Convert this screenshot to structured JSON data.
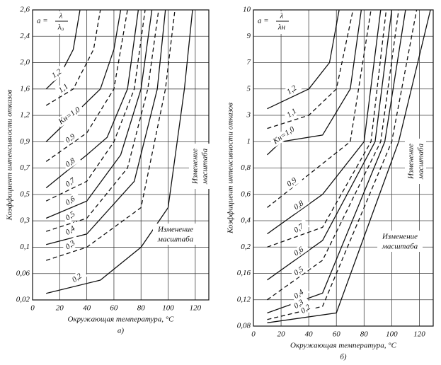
{
  "chart_data": [
    {
      "type": "line",
      "caption": "а)",
      "x_label": "Окружающая температура, °С",
      "y_label": "Коэффициент интенсивности отказов",
      "formula": {
        "lhs": "a =",
        "num": "λ",
        "den": "λ₀"
      },
      "annotations": [
        {
          "lines": [
            "Изменение",
            "масштаба"
          ]
        },
        {
          "lines": [
            "Изменение",
            "масштаба"
          ]
        }
      ],
      "xlim": [
        0,
        130
      ],
      "xticks": [
        0,
        20,
        40,
        60,
        80,
        100,
        120
      ],
      "ylim": [
        0.02,
        2.6
      ],
      "yticks": [
        {
          "value": 0.02,
          "label": "0,02"
        },
        {
          "value": 0.06,
          "label": "0,06"
        },
        {
          "value": 0.1,
          "label": "0,1"
        },
        {
          "value": 0.3,
          "label": "0,3"
        },
        {
          "value": 0.5,
          "label": "0,5"
        },
        {
          "value": 0.7,
          "label": "0,7"
        },
        {
          "value": 0.9,
          "label": "0,9"
        },
        {
          "value": 1.2,
          "label": "1,2"
        },
        {
          "value": 1.6,
          "label": "1,6"
        },
        {
          "value": 2.0,
          "label": "2,0"
        },
        {
          "value": 2.4,
          "label": "2,4"
        },
        {
          "value": 2.6,
          "label": "2,6"
        }
      ],
      "grid": true,
      "series": [
        {
          "name": "1,2",
          "color": "#111",
          "dashed": false,
          "x": [
            10,
            20,
            30,
            35
          ],
          "values": [
            1.6,
            1.8,
            2.2,
            2.6
          ]
        },
        {
          "name": "1,1",
          "color": "#111",
          "dashed": true,
          "x": [
            10,
            30,
            45,
            50
          ],
          "values": [
            1.35,
            1.6,
            2.2,
            2.6
          ]
        },
        {
          "name": "Kн=1,0",
          "color": "#111",
          "dashed": false,
          "x": [
            10,
            30,
            50,
            60,
            65
          ],
          "values": [
            0.9,
            1.2,
            1.6,
            2.2,
            2.6
          ]
        },
        {
          "name": "0,9",
          "color": "#111",
          "dashed": true,
          "x": [
            10,
            40,
            60,
            70
          ],
          "values": [
            0.75,
            1.0,
            1.6,
            2.6
          ]
        },
        {
          "name": "0,8",
          "color": "#111",
          "dashed": false,
          "x": [
            10,
            40,
            55,
            70,
            78
          ],
          "values": [
            0.55,
            0.8,
            0.95,
            1.6,
            2.6
          ]
        },
        {
          "name": "0,7",
          "color": "#111",
          "dashed": true,
          "x": [
            10,
            40,
            60,
            75,
            83
          ],
          "values": [
            0.45,
            0.6,
            0.9,
            1.6,
            2.6
          ]
        },
        {
          "name": "0,6",
          "color": "#111",
          "dashed": false,
          "x": [
            10,
            40,
            65,
            80,
            88
          ],
          "values": [
            0.32,
            0.45,
            0.8,
            1.6,
            2.6
          ]
        },
        {
          "name": "0,5",
          "color": "#111",
          "dashed": true,
          "x": [
            10,
            40,
            70,
            85,
            93
          ],
          "values": [
            0.22,
            0.32,
            0.7,
            1.6,
            2.6
          ]
        },
        {
          "name": "0,4",
          "color": "#111",
          "dashed": false,
          "x": [
            10,
            40,
            75,
            92,
            98
          ],
          "values": [
            0.12,
            0.2,
            0.6,
            1.6,
            2.6
          ]
        },
        {
          "name": "0,3",
          "color": "#111",
          "dashed": true,
          "x": [
            10,
            40,
            80,
            98,
            105
          ],
          "values": [
            0.08,
            0.1,
            0.4,
            1.6,
            2.6
          ]
        },
        {
          "name": "0,2",
          "color": "#111",
          "dashed": false,
          "x": [
            10,
            50,
            80,
            100,
            112,
            118
          ],
          "values": [
            0.03,
            0.05,
            0.1,
            0.4,
            1.6,
            2.6
          ]
        }
      ]
    },
    {
      "type": "line",
      "caption": "б)",
      "x_label": "Окружающая температура, °С",
      "y_label": "Коэффициент интенсивности отказов",
      "formula": {
        "lhs": "a =",
        "num": "λ",
        "den": "λн"
      },
      "annotations": [
        {
          "lines": [
            "Изменение",
            "масштаба"
          ]
        },
        {
          "lines": [
            "Изменение",
            "масштаба"
          ]
        }
      ],
      "xlim": [
        0,
        130
      ],
      "xticks": [
        0,
        20,
        40,
        60,
        80,
        100,
        120
      ],
      "ylim": [
        0.08,
        10
      ],
      "yticks": [
        {
          "value": 0.08,
          "label": "0,08"
        },
        {
          "value": 0.12,
          "label": "0,12"
        },
        {
          "value": 0.16,
          "label": "0,16"
        },
        {
          "value": 0.2,
          "label": "0,2"
        },
        {
          "value": 0.4,
          "label": "0,4"
        },
        {
          "value": 0.6,
          "label": "0,6"
        },
        {
          "value": 0.8,
          "label": "0,8"
        },
        1,
        3,
        5,
        7,
        9,
        10
      ],
      "grid": true,
      "series": [
        {
          "name": "1,2",
          "color": "#111",
          "dashed": false,
          "x": [
            10,
            40,
            55,
            62
          ],
          "values": [
            3.5,
            5,
            7,
            10
          ]
        },
        {
          "name": "1,1",
          "color": "#111",
          "dashed": true,
          "x": [
            10,
            40,
            60,
            72
          ],
          "values": [
            2,
            3,
            5,
            10
          ]
        },
        {
          "name": "Kн=1,0",
          "color": "#111",
          "dashed": false,
          "x": [
            10,
            20,
            50,
            70,
            78
          ],
          "values": [
            0.9,
            1,
            1.5,
            5,
            10
          ]
        },
        {
          "name": "0,9",
          "color": "#111",
          "dashed": true,
          "x": [
            10,
            40,
            70,
            85
          ],
          "values": [
            0.5,
            0.75,
            1,
            10
          ]
        },
        {
          "name": "0,8",
          "color": "#111",
          "dashed": false,
          "x": [
            10,
            50,
            80,
            92
          ],
          "values": [
            0.3,
            0.6,
            1,
            10
          ]
        },
        {
          "name": "0,7",
          "color": "#111",
          "dashed": true,
          "x": [
            10,
            50,
            85,
            96
          ],
          "values": [
            0.2,
            0.35,
            1,
            10
          ]
        },
        {
          "name": "0,6",
          "color": "#111",
          "dashed": false,
          "x": [
            10,
            50,
            88,
            100
          ],
          "values": [
            0.15,
            0.25,
            1,
            10
          ]
        },
        {
          "name": "0,5",
          "color": "#111",
          "dashed": true,
          "x": [
            10,
            50,
            92,
            105
          ],
          "values": [
            0.12,
            0.18,
            1,
            10
          ]
        },
        {
          "name": "0,4",
          "color": "#111",
          "dashed": false,
          "x": [
            10,
            50,
            95,
            110
          ],
          "values": [
            0.1,
            0.13,
            1,
            10
          ]
        },
        {
          "name": "0,3",
          "color": "#111",
          "dashed": true,
          "x": [
            10,
            50,
            100,
            118
          ],
          "values": [
            0.09,
            0.11,
            1,
            10
          ]
        },
        {
          "name": "0,2",
          "color": "#111",
          "dashed": false,
          "x": [
            10,
            60,
            105,
            128
          ],
          "values": [
            0.085,
            0.1,
            1,
            10
          ]
        }
      ]
    }
  ]
}
